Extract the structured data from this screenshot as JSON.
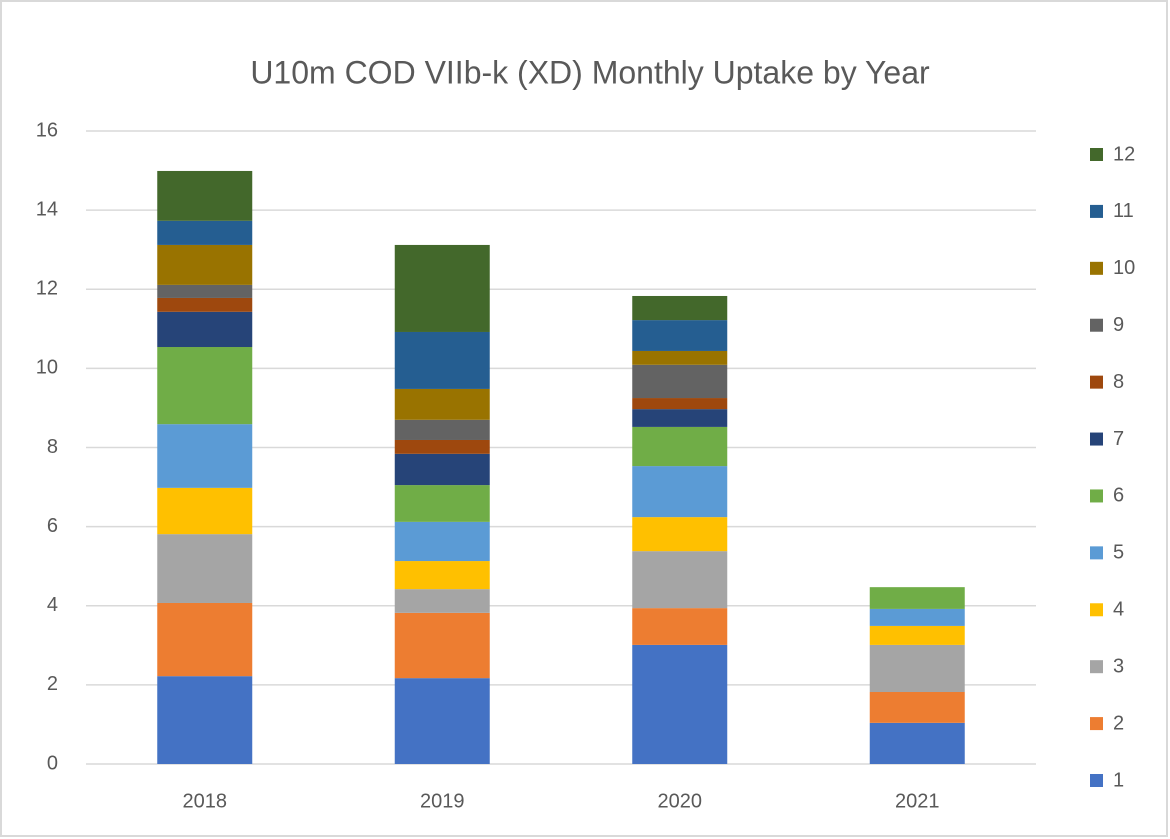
{
  "chart_data": {
    "type": "stacked_bar",
    "title": "U10m COD VIIb-k (XD) Monthly Uptake by Year",
    "categories": [
      "2018",
      "2019",
      "2020",
      "2021"
    ],
    "series": [
      {
        "name": "1",
        "color": "#4472c4",
        "values": [
          2.22,
          2.17,
          3.01,
          1.04
        ]
      },
      {
        "name": "2",
        "color": "#ed7d31",
        "values": [
          1.85,
          1.65,
          0.93,
          0.78
        ]
      },
      {
        "name": "3",
        "color": "#a5a5a5",
        "values": [
          1.74,
          0.6,
          1.44,
          1.19
        ]
      },
      {
        "name": "4",
        "color": "#ffc000",
        "values": [
          1.17,
          0.71,
          0.86,
          0.48
        ]
      },
      {
        "name": "5",
        "color": "#5b9bd5",
        "values": [
          1.61,
          0.99,
          1.29,
          0.43
        ]
      },
      {
        "name": "6",
        "color": "#70ad47",
        "values": [
          1.95,
          0.93,
          0.99,
          0.55
        ]
      },
      {
        "name": "7",
        "color": "#264478",
        "values": [
          0.89,
          0.79,
          0.45,
          0
        ]
      },
      {
        "name": "8",
        "color": "#9e480e",
        "values": [
          0.35,
          0.35,
          0.28,
          0
        ]
      },
      {
        "name": "9",
        "color": "#636363",
        "values": [
          0.33,
          0.51,
          0.84,
          0
        ]
      },
      {
        "name": "10",
        "color": "#997300",
        "values": [
          1.01,
          0.78,
          0.35,
          0
        ]
      },
      {
        "name": "11",
        "color": "#255e91",
        "values": [
          0.61,
          1.44,
          0.78,
          0
        ]
      },
      {
        "name": "12",
        "color": "#43682b",
        "values": [
          1.26,
          2.2,
          0.61,
          0
        ]
      }
    ],
    "ylim": [
      0,
      16
    ],
    "yticks": [
      0,
      2,
      4,
      6,
      8,
      10,
      12,
      14,
      16
    ],
    "grid": true,
    "legend": "right"
  }
}
